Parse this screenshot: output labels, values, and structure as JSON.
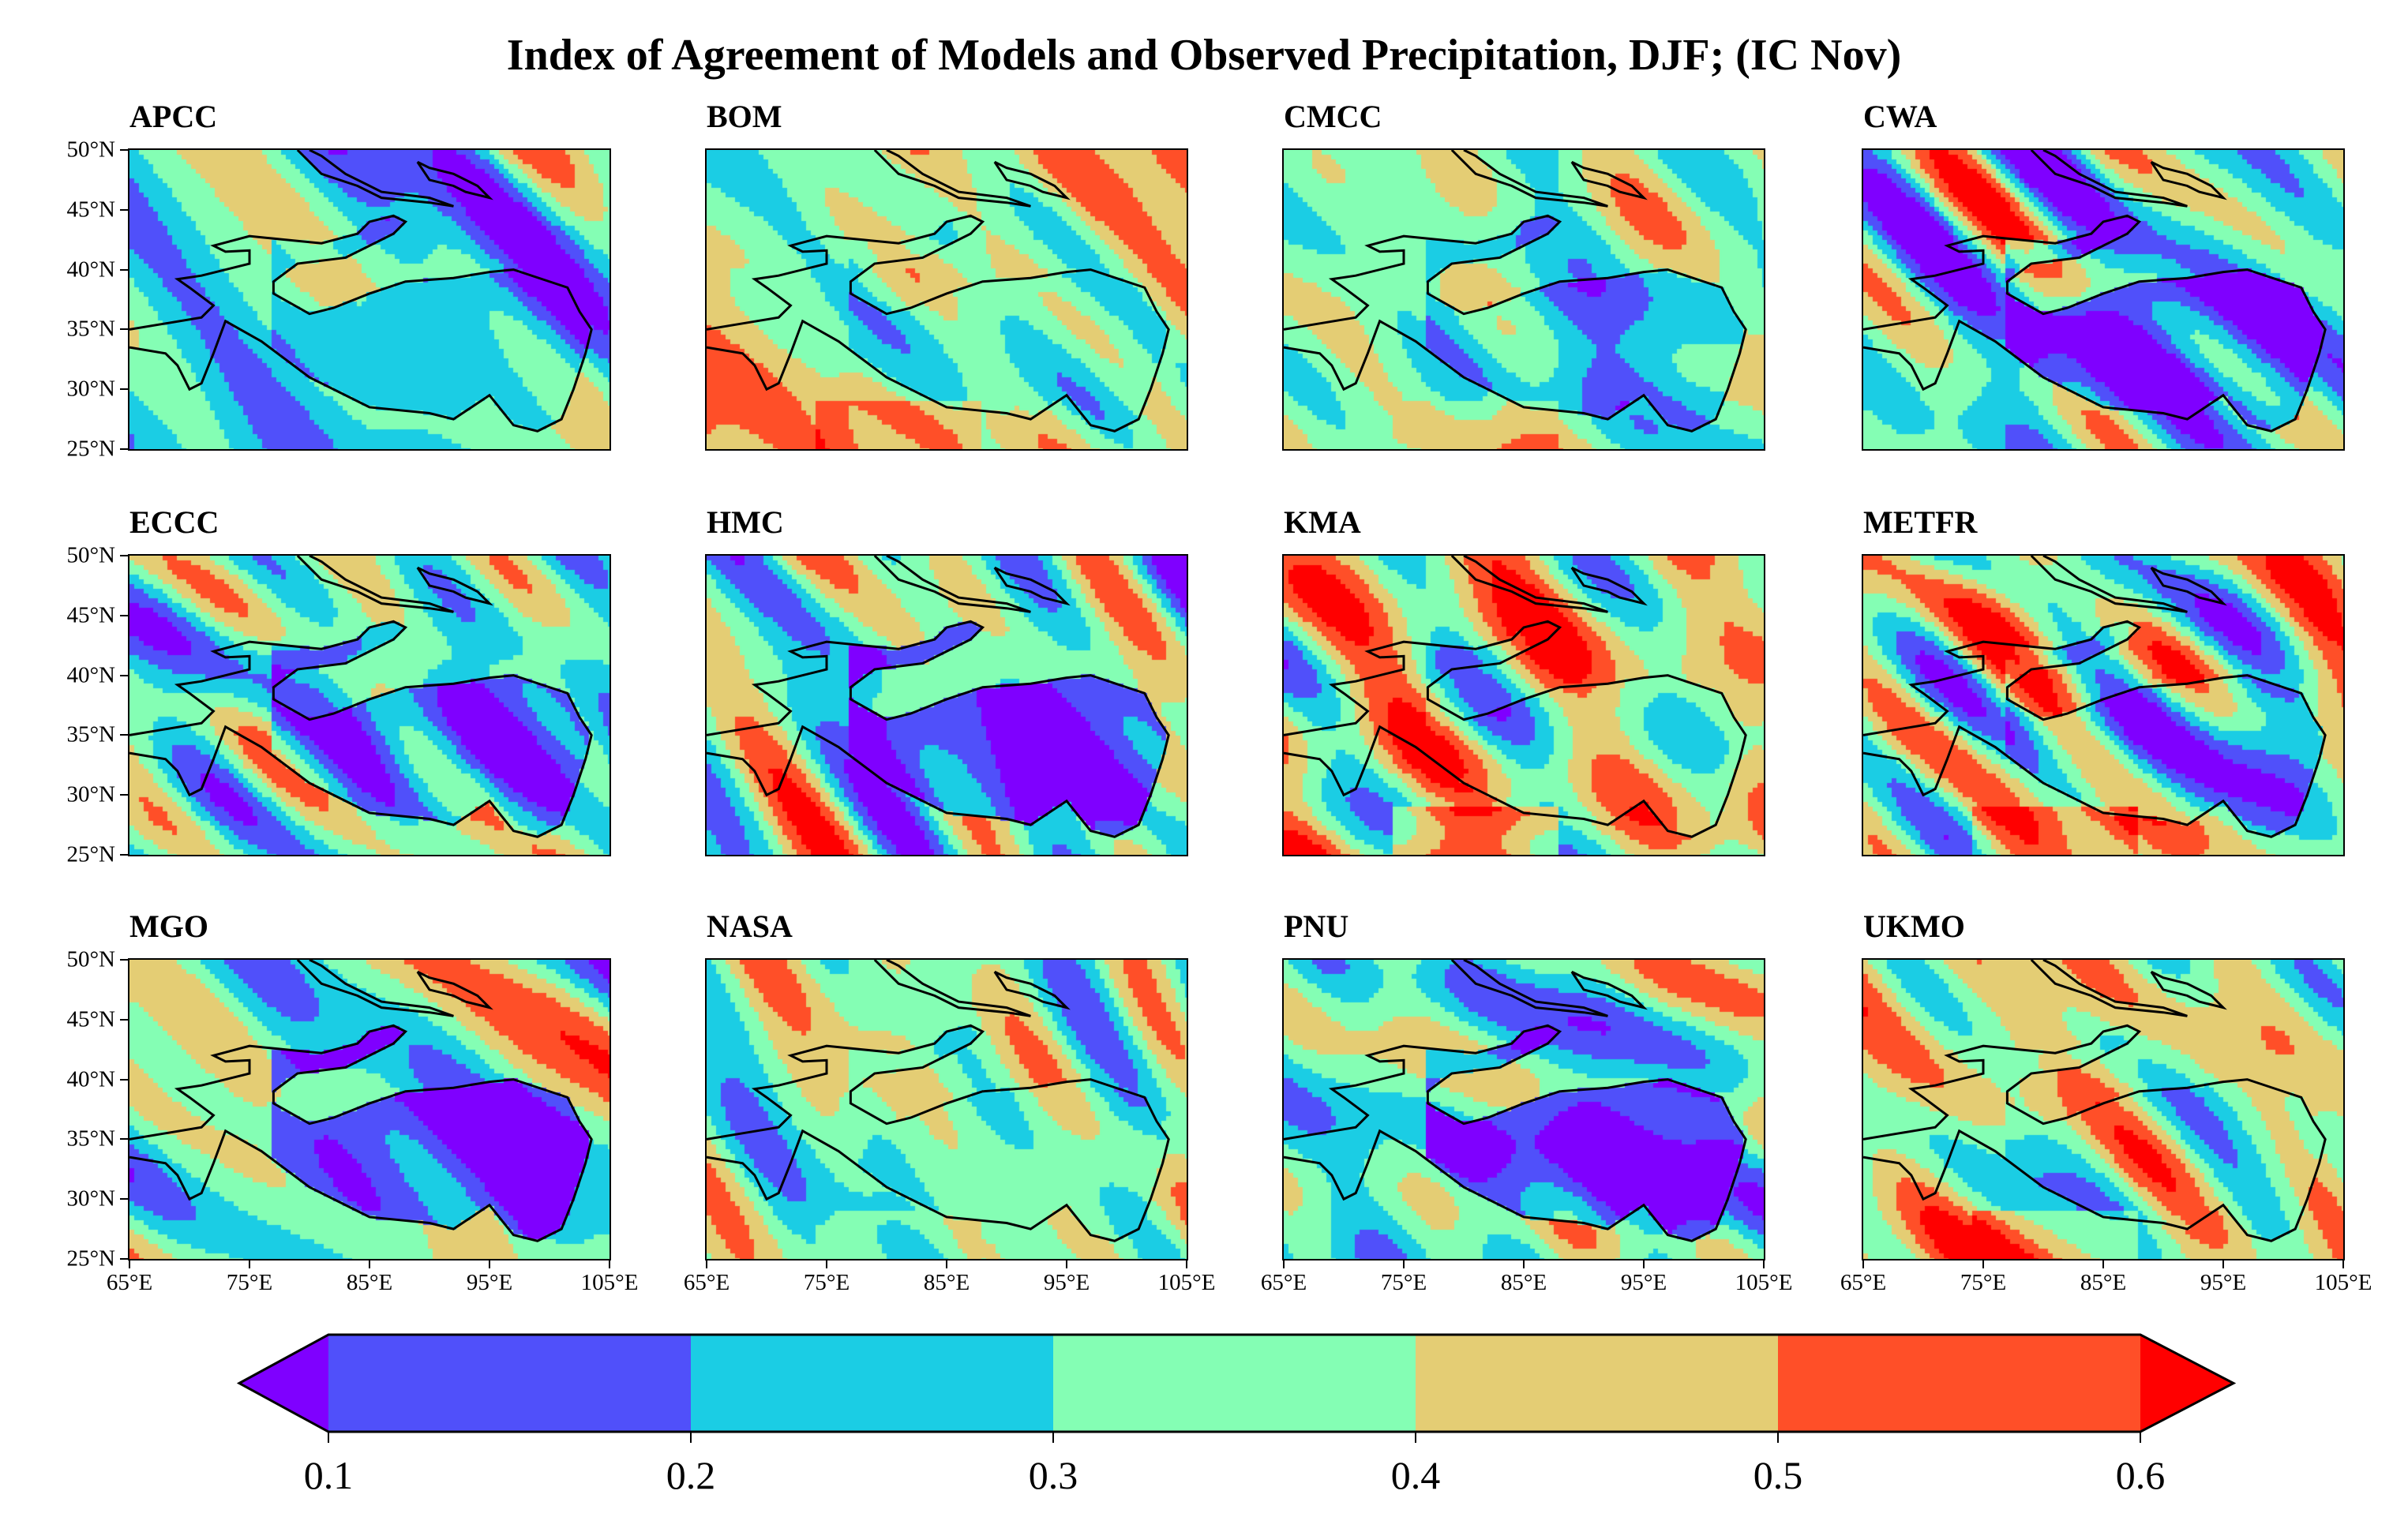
{
  "chart_data": {
    "type": "heatmap",
    "title": "Index of Agreement of Models and Observed Precipitation, DJF;  (IC  Nov)",
    "panels": [
      "APCC",
      "BOM",
      "CMCC",
      "CWA",
      "ECCC",
      "HMC",
      "KMA",
      "METFR",
      "MGO",
      "NASA",
      "PNU",
      "UKMO"
    ],
    "xlim": [
      65,
      105
    ],
    "ylim": [
      25,
      50
    ],
    "x_ticks": [
      "65°E",
      "75°E",
      "85°E",
      "95°E",
      "105°E"
    ],
    "y_ticks": [
      "50°N",
      "45°N",
      "40°N",
      "35°N",
      "30°N",
      "25°N"
    ],
    "colorbar": {
      "levels": [
        0.1,
        0.2,
        0.3,
        0.4,
        0.5,
        0.6
      ],
      "tick_labels": [
        "0.1",
        "0.2",
        "0.3",
        "0.4",
        "0.5",
        "0.6"
      ],
      "extend": "both",
      "colors": [
        "#7f00ff",
        "#5050fa",
        "#1bcde4",
        "#84feb4",
        "#e4cd74",
        "#ff4f28",
        "#ff0000"
      ],
      "orientation": "horizontal",
      "placement": "bottom"
    }
  }
}
